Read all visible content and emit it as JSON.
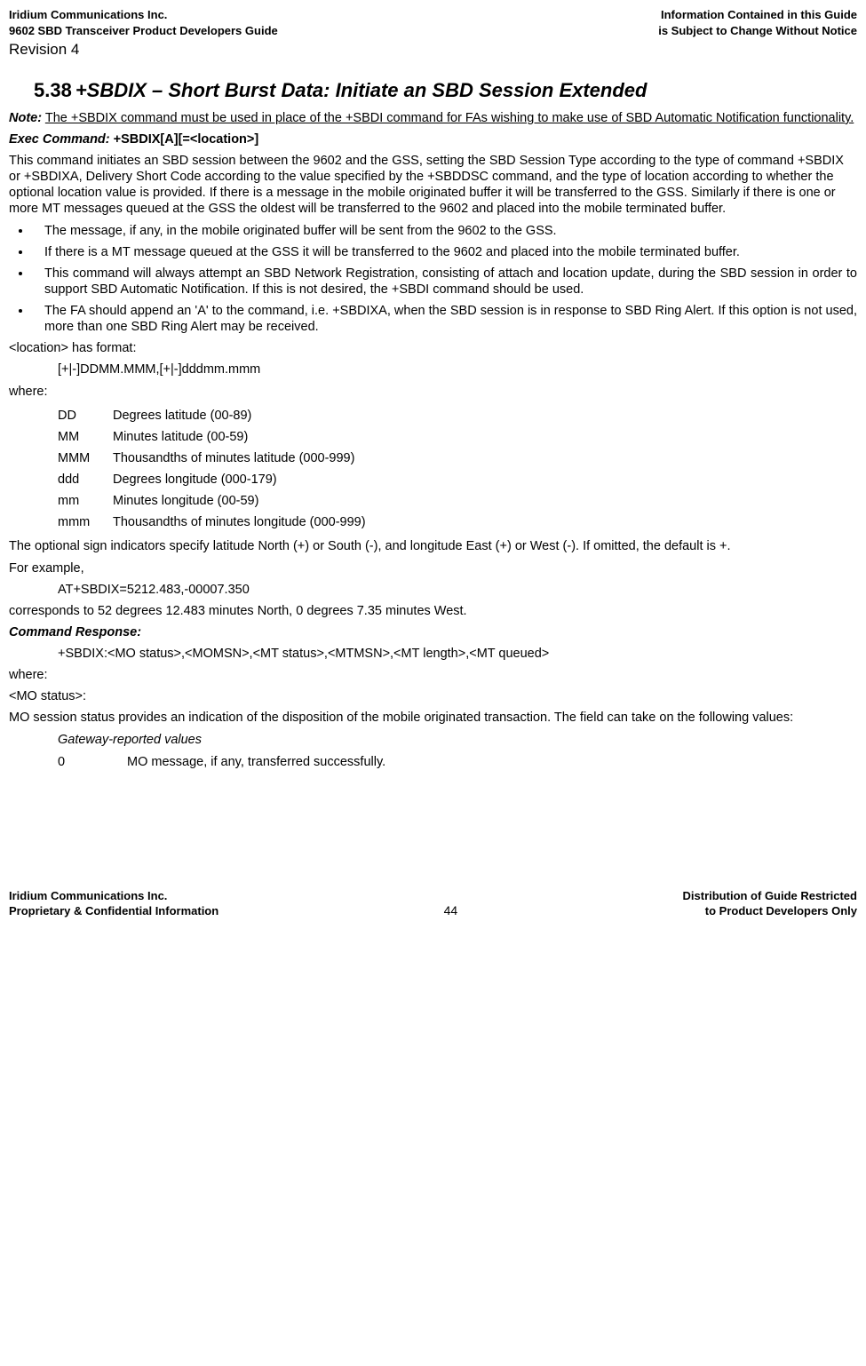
{
  "header": {
    "left1": "Iridium Communications Inc.",
    "left2": "9602 SBD Transceiver Product Developers Guide",
    "right1": "Information Contained in this Guide",
    "right2": "is Subject to Change Without Notice",
    "revision": "Revision 4"
  },
  "section": {
    "number": "5.38",
    "title": "+SBDIX – Short Burst Data: Initiate an SBD Session Extended"
  },
  "note": {
    "label": "Note:",
    "text": "The +SBDIX command must be used in place of the +SBDI command for FAs wishing to make use of SBD Automatic Notification functionality."
  },
  "exec": {
    "label": "Exec Command:",
    "cmd": " +SBDIX[A][=<location>]"
  },
  "intro": "This command initiates an SBD session between the 9602 and the GSS, setting the SBD Session Type according to the type of command +SBDIX or +SBDIXA, Delivery Short Code according to the value specified by the +SBDDSC command, and the type of location according to whether the optional location value is provided.  If there is a message in the mobile originated buffer it will be transferred to the GSS.  Similarly if there is one or more MT messages queued at the GSS the oldest will be transferred to the 9602 and placed into the mobile terminated buffer.",
  "bullets": [
    "The message, if any, in the mobile originated buffer will be sent from the 9602 to the GSS.",
    "If there is a MT message queued at the GSS it will be transferred to the 9602 and placed into the mobile terminated buffer.",
    "This command will always attempt an SBD Network Registration, consisting of attach and location update, during the SBD session in order to support SBD Automatic Notification.  If this is not desired, the +SBDI command should be used.",
    "The FA should append an 'A' to the command, i.e. +SBDIXA, when the SBD session is in response to SBD Ring Alert. If this option is not used, more than one SBD Ring Alert may be received."
  ],
  "loc_has_format": "<location> has format:",
  "loc_format": "[+|-]DDMM.MMM,[+|-]dddmm.mmm",
  "where": "where:",
  "defs": [
    {
      "k": "DD",
      "v": "Degrees latitude (00-89)"
    },
    {
      "k": "MM",
      "v": "Minutes latitude (00-59)"
    },
    {
      "k": "MMM",
      "v": "Thousandths of minutes latitude (000-999)"
    },
    {
      "k": "ddd",
      "v": "Degrees longitude (000-179)"
    },
    {
      "k": "mm",
      "v": "Minutes longitude (00-59)"
    },
    {
      "k": "mmm",
      "v": "Thousandths of minutes longitude (000-999)"
    }
  ],
  "sign_note": "The optional sign indicators specify latitude North (+) or South (-), and longitude East (+) or West (-).  If omitted, the default is +.",
  "for_example": "For example,",
  "example_cmd": "AT+SBDIX=5212.483,-00007.350",
  "example_desc": "corresponds to 52 degrees 12.483 minutes North, 0 degrees 7.35 minutes West.",
  "cmd_response_label": "Command Response:",
  "cmd_response": "+SBDIX:<MO status>,<MOMSN>,<MT status>,<MTMSN>,<MT length>,<MT queued>",
  "where2": "where:",
  "mo_status_label": "<MO status>:",
  "mo_status_desc": "MO session status provides an indication of the disposition of the mobile originated transaction. The field can take on the following values:",
  "gw_label": "Gateway-reported values",
  "val0": {
    "k": "0",
    "v": "MO message, if any, transferred successfully."
  },
  "footer": {
    "left1": "Iridium Communications Inc.",
    "left2": "Proprietary & Confidential Information",
    "page": "44",
    "right1": "Distribution of Guide Restricted",
    "right2": "to Product Developers Only"
  }
}
